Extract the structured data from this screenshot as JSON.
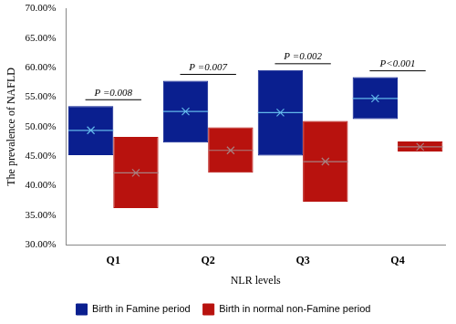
{
  "chart_data": {
    "type": "box",
    "x_label": "NLR levels",
    "y_label": "The prevalence of NAFLD",
    "categories": [
      "Q1",
      "Q2",
      "Q3",
      "Q4"
    ],
    "series": [
      {
        "name": "Birth in Famine period",
        "color": "#0a1f8f",
        "values": [
          49.4,
          52.6,
          52.4,
          54.8
        ],
        "low": [
          45.2,
          47.3,
          45.1,
          51.3
        ],
        "high": [
          53.5,
          57.8,
          59.6,
          58.4
        ]
      },
      {
        "name": "Birth in normal non-Famine period",
        "color": "#b8120e",
        "values": [
          42.2,
          46.0,
          44.1,
          46.6
        ],
        "low": [
          36.2,
          42.2,
          37.3,
          45.8
        ],
        "high": [
          48.3,
          49.9,
          51.0,
          47.5
        ]
      }
    ],
    "annotations": [
      {
        "category": "Q1",
        "text": "P =0.008"
      },
      {
        "category": "Q2",
        "text": "P =0.007"
      },
      {
        "category": "Q3",
        "text": "P =0.002"
      },
      {
        "category": "Q4",
        "text": "P<0.001"
      }
    ],
    "ylim": [
      30,
      70
    ],
    "yticks": [
      {
        "value": 30,
        "label": "30.00%"
      },
      {
        "value": 35,
        "label": "35.00%"
      },
      {
        "value": 40,
        "label": "40.00%"
      },
      {
        "value": 45,
        "label": "45.00%"
      },
      {
        "value": 50,
        "label": "50.00%"
      },
      {
        "value": 55,
        "label": "55.00%"
      },
      {
        "value": 60,
        "label": "60.00%"
      },
      {
        "value": 65,
        "label": "65.00%"
      },
      {
        "value": 70,
        "label": "70.00%"
      }
    ],
    "grid": false,
    "legend": "bottom"
  }
}
